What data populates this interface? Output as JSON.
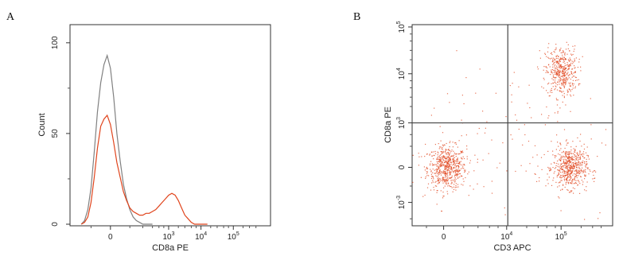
{
  "chart_data": [
    {
      "panel": "A",
      "type": "line",
      "xlabel": "CD8a PE",
      "ylabel": "Count",
      "ylim": [
        0,
        110
      ],
      "x_ticks": [
        {
          "base": "0",
          "exp": ""
        },
        {
          "base": "10",
          "exp": "3"
        },
        {
          "base": "10",
          "exp": "4"
        },
        {
          "base": "10",
          "exp": "5"
        }
      ],
      "y_ticks": [
        "0",
        "50",
        "100"
      ],
      "series": [
        {
          "color": "#808080",
          "x": [
            -0.9,
            -0.8,
            -0.7,
            -0.6,
            -0.5,
            -0.4,
            -0.3,
            -0.2,
            -0.1,
            0,
            0.1,
            0.2,
            0.3,
            0.4,
            0.5,
            0.6,
            0.7,
            0.8,
            0.9,
            1.0,
            1.1,
            1.2,
            1.3
          ],
          "y": [
            0,
            2,
            8,
            20,
            40,
            62,
            78,
            88,
            93,
            86,
            70,
            50,
            35,
            22,
            14,
            8,
            4,
            2,
            1,
            0,
            0,
            0,
            0
          ]
        },
        {
          "color": "#e0441c",
          "x": [
            -0.9,
            -0.8,
            -0.7,
            -0.6,
            -0.5,
            -0.4,
            -0.3,
            -0.2,
            -0.1,
            0,
            0.1,
            0.2,
            0.3,
            0.4,
            0.5,
            0.6,
            0.7,
            0.8,
            0.9,
            1.0,
            1.1,
            1.2,
            1.3,
            1.4,
            1.5,
            1.6,
            1.7,
            1.8,
            1.9,
            2.0,
            2.1,
            2.2,
            2.3,
            2.4,
            2.5,
            2.6,
            2.7,
            2.8,
            2.9,
            3.0
          ],
          "y": [
            0,
            1,
            4,
            12,
            26,
            42,
            54,
            58,
            60,
            55,
            45,
            34,
            26,
            18,
            13,
            9,
            7,
            6,
            5,
            5,
            6,
            6,
            7,
            8,
            10,
            12,
            14,
            16,
            17,
            16,
            13,
            9,
            5,
            3,
            1,
            0,
            0,
            0,
            0,
            0
          ]
        }
      ]
    },
    {
      "panel": "B",
      "type": "scatter",
      "xlabel": "CD3 APC",
      "ylabel": "CD8a PE",
      "x_ticks": [
        {
          "base": "0",
          "exp": ""
        },
        {
          "base": "10",
          "exp": "4"
        },
        {
          "base": "10",
          "exp": "5"
        }
      ],
      "y_ticks": [
        {
          "base": "10",
          "exp": "-3"
        },
        {
          "base": "0",
          "exp": ""
        },
        {
          "base": "10",
          "exp": "3"
        },
        {
          "base": "10",
          "exp": "4"
        },
        {
          "base": "10",
          "exp": "5"
        }
      ],
      "gates": {
        "x": 1.12,
        "y": 0.95
      },
      "color": "#e0441c",
      "clusters": [
        {
          "cx": 0.05,
          "cy": 0.0,
          "sx": 0.17,
          "sy": 0.23,
          "n": 600
        },
        {
          "cx": 2.05,
          "cy": 2.05,
          "sx": 0.14,
          "sy": 0.27,
          "n": 450
        },
        {
          "cx": 2.2,
          "cy": 0.0,
          "sx": 0.15,
          "sy": 0.22,
          "n": 550
        },
        {
          "cx": 1.2,
          "cy": 0.6,
          "sx": 1.1,
          "sy": 0.9,
          "n": 160
        }
      ]
    }
  ],
  "panels": {
    "a_letter": "A",
    "b_letter": "B"
  }
}
